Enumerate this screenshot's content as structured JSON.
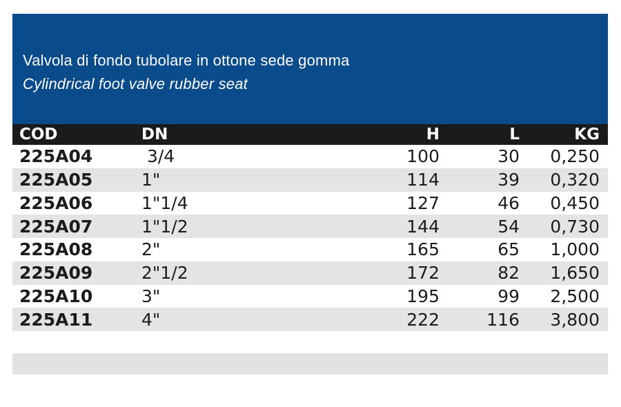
{
  "header": {
    "title_it": "Valvola di fondo tubolare in ottone sede gomma",
    "title_en": "Cylindrical foot valve rubber seat"
  },
  "table": {
    "columns": {
      "cod": "COD",
      "dn": "DN",
      "h": "H",
      "l": "L",
      "kg": "KG"
    },
    "rows": [
      {
        "cod": "225A04",
        "dn": " 3/4",
        "h": "100",
        "l": "30",
        "kg": "0,250"
      },
      {
        "cod": "225A05",
        "dn": "1\"",
        "h": "114",
        "l": "39",
        "kg": "0,320"
      },
      {
        "cod": "225A06",
        "dn": "1\"1/4",
        "h": "127",
        "l": "46",
        "kg": "0,450"
      },
      {
        "cod": "225A07",
        "dn": "1\"1/2",
        "h": "144",
        "l": "54",
        "kg": "0,730"
      },
      {
        "cod": "225A08",
        "dn": "2\"",
        "h": "165",
        "l": "65",
        "kg": "1,000"
      },
      {
        "cod": "225A09",
        "dn": "2\"1/2",
        "h": "172",
        "l": "82",
        "kg": "1,650"
      },
      {
        "cod": "225A10",
        "dn": "3\"",
        "h": "195",
        "l": "99",
        "kg": "2,500"
      },
      {
        "cod": "225A11",
        "dn": "4\"",
        "h": "222",
        "l": "116",
        "kg": "3,800"
      }
    ]
  },
  "colors": {
    "header_blue": "#0a4b8c",
    "table_head_bg": "#1b1b1b",
    "row_alt_bg": "#e5e4e2",
    "footer_bar_bg": "#e3e2e0",
    "text_dark": "#1c1c1c",
    "text_white": "#ffffff"
  }
}
